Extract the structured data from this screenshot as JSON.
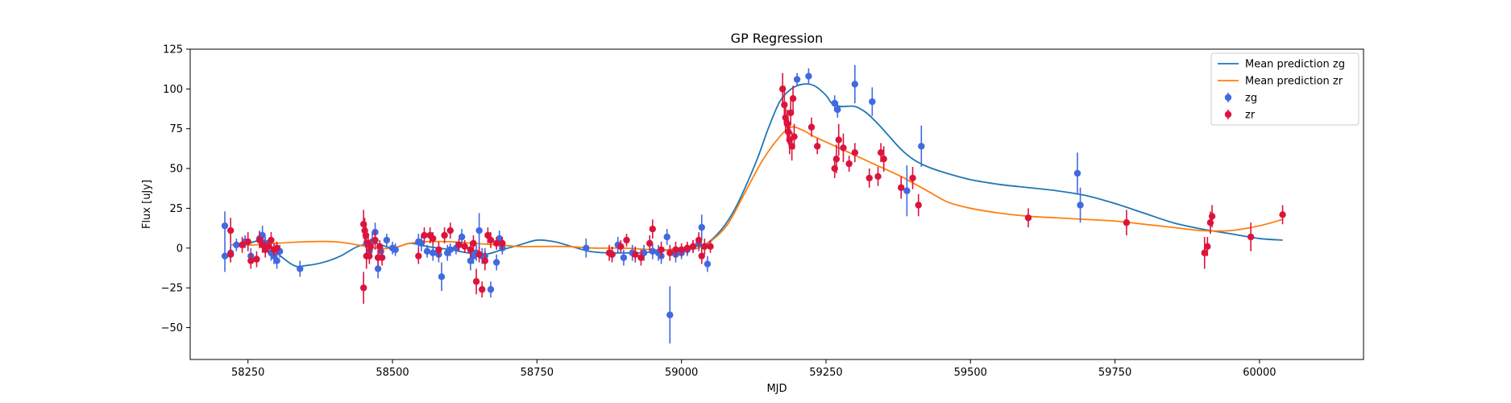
{
  "chart_data": {
    "type": "scatter",
    "title": "GP Regression",
    "xlabel": "MJD",
    "ylabel": "Flux [uJy]",
    "xlim": [
      58150,
      60180
    ],
    "ylim": [
      -70,
      125
    ],
    "xticks": [
      58250,
      58500,
      58750,
      59000,
      59250,
      59500,
      59750,
      60000
    ],
    "yticks": [
      -50,
      -25,
      0,
      25,
      50,
      75,
      100,
      125
    ],
    "legend_position": "upper right",
    "grid": false,
    "lines": [
      {
        "name": "Mean prediction zg",
        "color": "#1f77b4",
        "points": [
          [
            58220,
            2
          ],
          [
            58250,
            3
          ],
          [
            58280,
            5
          ],
          [
            58300,
            -3
          ],
          [
            58330,
            -11
          ],
          [
            58350,
            -11
          ],
          [
            58380,
            -9
          ],
          [
            58410,
            -5
          ],
          [
            58440,
            1
          ],
          [
            58470,
            3
          ],
          [
            58500,
            0
          ],
          [
            58530,
            3
          ],
          [
            58560,
            1
          ],
          [
            58600,
            -1
          ],
          [
            58630,
            -3
          ],
          [
            58660,
            -4
          ],
          [
            58690,
            -1
          ],
          [
            58720,
            2
          ],
          [
            58750,
            5
          ],
          [
            58780,
            4
          ],
          [
            58810,
            1
          ],
          [
            58840,
            -2
          ],
          [
            58870,
            -3
          ],
          [
            58900,
            -3
          ],
          [
            58930,
            -3
          ],
          [
            58960,
            -2
          ],
          [
            58980,
            -1
          ],
          [
            59000,
            0
          ],
          [
            59020,
            1
          ],
          [
            59040,
            2
          ],
          [
            59060,
            8
          ],
          [
            59080,
            17
          ],
          [
            59100,
            30
          ],
          [
            59130,
            55
          ],
          [
            59150,
            75
          ],
          [
            59170,
            92
          ],
          [
            59190,
            100
          ],
          [
            59210,
            103
          ],
          [
            59230,
            102
          ],
          [
            59250,
            96
          ],
          [
            59260,
            91
          ],
          [
            59275,
            89
          ],
          [
            59300,
            89
          ],
          [
            59320,
            85
          ],
          [
            59340,
            78
          ],
          [
            59360,
            70
          ],
          [
            59380,
            62
          ],
          [
            59400,
            56
          ],
          [
            59420,
            52
          ],
          [
            59450,
            48
          ],
          [
            59500,
            43
          ],
          [
            59550,
            40
          ],
          [
            59600,
            38
          ],
          [
            59650,
            36
          ],
          [
            59700,
            33
          ],
          [
            59750,
            28
          ],
          [
            59800,
            22
          ],
          [
            59850,
            16
          ],
          [
            59900,
            12
          ],
          [
            59950,
            9
          ],
          [
            60000,
            6
          ],
          [
            60040,
            5
          ]
        ]
      },
      {
        "name": "Mean prediction zr",
        "color": "#ff7f0e",
        "points": [
          [
            58220,
            2
          ],
          [
            58260,
            2
          ],
          [
            58300,
            3
          ],
          [
            58350,
            4
          ],
          [
            58400,
            4
          ],
          [
            58440,
            2
          ],
          [
            58470,
            0
          ],
          [
            58500,
            0
          ],
          [
            58530,
            3
          ],
          [
            58560,
            4
          ],
          [
            58600,
            4
          ],
          [
            58640,
            3
          ],
          [
            58680,
            2
          ],
          [
            58720,
            1
          ],
          [
            58750,
            1
          ],
          [
            58800,
            1
          ],
          [
            58850,
            0
          ],
          [
            58900,
            0
          ],
          [
            58950,
            -1
          ],
          [
            59000,
            -1
          ],
          [
            59030,
            0
          ],
          [
            59050,
            4
          ],
          [
            59080,
            15
          ],
          [
            59110,
            35
          ],
          [
            59140,
            55
          ],
          [
            59170,
            70
          ],
          [
            59190,
            76
          ],
          [
            59210,
            74
          ],
          [
            59230,
            70
          ],
          [
            59260,
            65
          ],
          [
            59290,
            60
          ],
          [
            59320,
            55
          ],
          [
            59350,
            50
          ],
          [
            59380,
            45
          ],
          [
            59400,
            41
          ],
          [
            59430,
            35
          ],
          [
            59460,
            29
          ],
          [
            59500,
            25
          ],
          [
            59550,
            22
          ],
          [
            59600,
            20
          ],
          [
            59650,
            19
          ],
          [
            59700,
            18
          ],
          [
            59750,
            17
          ],
          [
            59800,
            15
          ],
          [
            59850,
            13
          ],
          [
            59900,
            11
          ],
          [
            59950,
            11
          ],
          [
            60000,
            14
          ],
          [
            60040,
            18
          ]
        ]
      }
    ],
    "series": [
      {
        "name": "zg",
        "color": "#4169e1",
        "points": [
          [
            58210,
            14,
            9
          ],
          [
            58210,
            -5,
            10
          ],
          [
            58220,
            -3,
            6
          ],
          [
            58230,
            2,
            4
          ],
          [
            58245,
            4,
            4
          ],
          [
            58255,
            -5,
            5
          ],
          [
            58270,
            6,
            5
          ],
          [
            58275,
            8,
            6
          ],
          [
            58280,
            3,
            4
          ],
          [
            58290,
            -3,
            5
          ],
          [
            58295,
            -5,
            5
          ],
          [
            58300,
            -8,
            5
          ],
          [
            58305,
            -2,
            4
          ],
          [
            58340,
            -13,
            5
          ],
          [
            58455,
            3,
            6
          ],
          [
            58460,
            -2,
            5
          ],
          [
            58465,
            4,
            6
          ],
          [
            58470,
            10,
            6
          ],
          [
            58475,
            -13,
            6
          ],
          [
            58480,
            -2,
            5
          ],
          [
            58490,
            5,
            4
          ],
          [
            58500,
            0,
            4
          ],
          [
            58505,
            -1,
            4
          ],
          [
            58545,
            4,
            5
          ],
          [
            58550,
            3,
            5
          ],
          [
            58560,
            -2,
            4
          ],
          [
            58570,
            -3,
            5
          ],
          [
            58580,
            -4,
            5
          ],
          [
            58585,
            -18,
            9
          ],
          [
            58595,
            -3,
            5
          ],
          [
            58600,
            -1,
            4
          ],
          [
            58610,
            0,
            4
          ],
          [
            58620,
            7,
            5
          ],
          [
            58635,
            -8,
            6
          ],
          [
            58640,
            -5,
            5
          ],
          [
            58645,
            -3,
            5
          ],
          [
            58650,
            11,
            11
          ],
          [
            58655,
            -5,
            5
          ],
          [
            58660,
            -5,
            5
          ],
          [
            58670,
            -26,
            5
          ],
          [
            58680,
            -9,
            5
          ],
          [
            58685,
            6,
            5
          ],
          [
            58690,
            0,
            4
          ],
          [
            58835,
            0,
            6
          ],
          [
            58880,
            -4,
            4
          ],
          [
            58890,
            2,
            5
          ],
          [
            58900,
            -6,
            5
          ],
          [
            58915,
            -3,
            5
          ],
          [
            58935,
            -3,
            5
          ],
          [
            58950,
            -2,
            5
          ],
          [
            58960,
            -3,
            5
          ],
          [
            58965,
            -5,
            5
          ],
          [
            58975,
            7,
            5
          ],
          [
            58980,
            -42,
            18
          ],
          [
            58990,
            -4,
            5
          ],
          [
            59000,
            -3,
            4
          ],
          [
            59010,
            -1,
            4
          ],
          [
            59020,
            1,
            4
          ],
          [
            59030,
            3,
            5
          ],
          [
            59035,
            13,
            8
          ],
          [
            59045,
            -10,
            5
          ],
          [
            59200,
            106,
            4
          ],
          [
            59220,
            108,
            5
          ],
          [
            59265,
            91,
            5
          ],
          [
            59270,
            87,
            5
          ],
          [
            59300,
            103,
            12
          ],
          [
            59330,
            92,
            9
          ],
          [
            59390,
            36,
            16
          ],
          [
            59415,
            64,
            13
          ],
          [
            59685,
            47,
            13
          ],
          [
            59690,
            27,
            11
          ]
        ]
      },
      {
        "name": "zr",
        "color": "#dc143c",
        "points": [
          [
            58220,
            11,
            8
          ],
          [
            58220,
            -4,
            5
          ],
          [
            58240,
            2,
            5
          ],
          [
            58250,
            4,
            6
          ],
          [
            58255,
            -8,
            5
          ],
          [
            58265,
            -7,
            5
          ],
          [
            58270,
            5,
            5
          ],
          [
            58275,
            2,
            5
          ],
          [
            58280,
            -1,
            5
          ],
          [
            58285,
            1,
            4
          ],
          [
            58290,
            5,
            5
          ],
          [
            58295,
            -1,
            4
          ],
          [
            58300,
            0,
            4
          ],
          [
            58450,
            -25,
            10
          ],
          [
            58450,
            15,
            9
          ],
          [
            58452,
            11,
            8
          ],
          [
            58454,
            8,
            8
          ],
          [
            58455,
            -5,
            8
          ],
          [
            58458,
            3,
            5
          ],
          [
            58460,
            -5,
            5
          ],
          [
            58462,
            1,
            4
          ],
          [
            58470,
            5,
            6
          ],
          [
            58475,
            -6,
            5
          ],
          [
            58478,
            1,
            4
          ],
          [
            58482,
            -6,
            5
          ],
          [
            58545,
            -5,
            5
          ],
          [
            58555,
            8,
            5
          ],
          [
            58565,
            8,
            5
          ],
          [
            58570,
            6,
            4
          ],
          [
            58580,
            -1,
            5
          ],
          [
            58590,
            8,
            5
          ],
          [
            58600,
            11,
            5
          ],
          [
            58615,
            2,
            4
          ],
          [
            58625,
            1,
            4
          ],
          [
            58635,
            -1,
            5
          ],
          [
            58640,
            3,
            5
          ],
          [
            58645,
            -21,
            8
          ],
          [
            58650,
            -4,
            5
          ],
          [
            58655,
            -26,
            5
          ],
          [
            58660,
            -8,
            6
          ],
          [
            58665,
            8,
            5
          ],
          [
            58670,
            5,
            5
          ],
          [
            58680,
            3,
            4
          ],
          [
            58690,
            3,
            4
          ],
          [
            58875,
            -3,
            5
          ],
          [
            58880,
            -4,
            5
          ],
          [
            58895,
            1,
            4
          ],
          [
            58905,
            5,
            4
          ],
          [
            58920,
            -4,
            5
          ],
          [
            58930,
            -6,
            5
          ],
          [
            58945,
            3,
            5
          ],
          [
            58950,
            12,
            6
          ],
          [
            58965,
            -1,
            5
          ],
          [
            58980,
            -3,
            5
          ],
          [
            58990,
            -1,
            5
          ],
          [
            59000,
            -1,
            4
          ],
          [
            59010,
            0,
            4
          ],
          [
            59020,
            1,
            4
          ],
          [
            59030,
            5,
            5
          ],
          [
            59035,
            -5,
            5
          ],
          [
            59040,
            1,
            5
          ],
          [
            59050,
            1,
            4
          ],
          [
            59175,
            100,
            10
          ],
          [
            59178,
            90,
            12
          ],
          [
            59180,
            82,
            10
          ],
          [
            59183,
            78,
            9
          ],
          [
            59185,
            73,
            8
          ],
          [
            59187,
            68,
            9
          ],
          [
            59189,
            85,
            8
          ],
          [
            59191,
            64,
            9
          ],
          [
            59193,
            94,
            8
          ],
          [
            59195,
            70,
            8
          ],
          [
            59225,
            76,
            6
          ],
          [
            59235,
            64,
            5
          ],
          [
            59265,
            50,
            6
          ],
          [
            59268,
            56,
            9
          ],
          [
            59272,
            68,
            10
          ],
          [
            59280,
            63,
            9
          ],
          [
            59290,
            53,
            5
          ],
          [
            59300,
            60,
            6
          ],
          [
            59325,
            44,
            6
          ],
          [
            59340,
            45,
            6
          ],
          [
            59345,
            60,
            6
          ],
          [
            59350,
            56,
            8
          ],
          [
            59380,
            38,
            7
          ],
          [
            59400,
            44,
            7
          ],
          [
            59410,
            27,
            7
          ],
          [
            59600,
            19,
            6
          ],
          [
            59770,
            16,
            8
          ],
          [
            59905,
            -3,
            10
          ],
          [
            59910,
            1,
            6
          ],
          [
            59915,
            16,
            7
          ],
          [
            59918,
            20,
            7
          ],
          [
            59985,
            7,
            9
          ],
          [
            60040,
            21,
            6
          ]
        ]
      }
    ]
  }
}
